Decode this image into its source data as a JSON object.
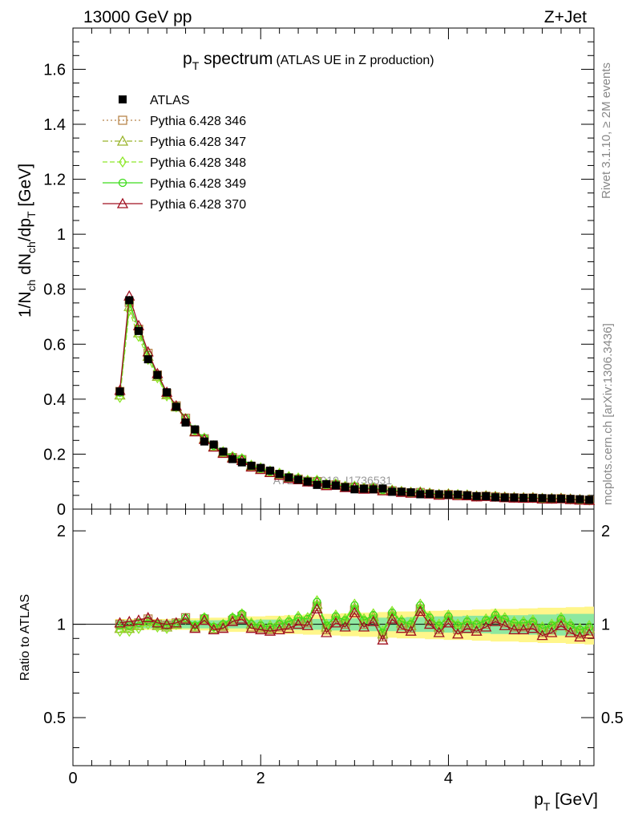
{
  "header": {
    "energy_label": "13000 GeV pp",
    "process_label": "Z+Jet"
  },
  "title": {
    "main": "p",
    "main_sub": "T",
    "main_rest": " spectrum",
    "sub": "(ATLAS UE in Z production)"
  },
  "side_labels": {
    "rivet": "Rivet 3.1.10, ≥ 2M events",
    "mcplots": "mcplots.cern.ch [arXiv:1306.3436]"
  },
  "watermark": "ATLAS_2019_I1736531",
  "axes": {
    "ylabel_top": "1/N_ch dN_ch/dp_T [GeV]",
    "ylabel_ratio": "Ratio to ATLAS",
    "xlabel_main": "p",
    "xlabel_sub": "T",
    "xlabel_rest": " [GeV]"
  },
  "colors": {
    "data": "#000000",
    "p346": "#b8854a",
    "p347": "#99b32a",
    "p348": "#8ee82a",
    "p349": "#3cdc1a",
    "p370": "#a01020",
    "band_inner": "#8ee8a0",
    "band_outer": "#fff68a"
  },
  "chart_data": {
    "type": "line",
    "x": [
      0.5,
      0.6,
      0.7,
      0.8,
      0.9,
      1.0,
      1.1,
      1.2,
      1.3,
      1.4,
      1.5,
      1.6,
      1.7,
      1.8,
      1.9,
      2.0,
      2.1,
      2.2,
      2.3,
      2.4,
      2.5,
      2.6,
      2.7,
      2.8,
      2.9,
      3.0,
      3.1,
      3.2,
      3.3,
      3.4,
      3.5,
      3.6,
      3.7,
      3.8,
      3.9,
      4.0,
      4.1,
      4.2,
      4.3,
      4.4,
      4.5,
      4.6,
      4.7,
      4.8,
      4.9,
      5.0,
      5.1,
      5.2,
      5.3,
      5.4,
      5.5
    ],
    "xlim": [
      0,
      5.55
    ],
    "ylim": [
      0,
      1.75
    ],
    "ratio_ylim": [
      0.35,
      2.35
    ],
    "xticks": [
      0,
      2,
      4
    ],
    "yticks": [
      0,
      0.2,
      0.4,
      0.6,
      0.8,
      1,
      1.2,
      1.4,
      1.6
    ],
    "ratio_yticks": [
      0.5,
      1,
      2
    ],
    "ratio_reference": 1,
    "data": {
      "name": "ATLAS",
      "values": [
        0.428,
        0.76,
        0.648,
        0.545,
        0.488,
        0.425,
        0.372,
        0.315,
        0.29,
        0.246,
        0.235,
        0.209,
        0.182,
        0.17,
        0.158,
        0.15,
        0.14,
        0.128,
        0.115,
        0.107,
        0.1,
        0.088,
        0.091,
        0.086,
        0.08,
        0.072,
        0.074,
        0.072,
        0.075,
        0.063,
        0.063,
        0.061,
        0.054,
        0.055,
        0.054,
        0.052,
        0.053,
        0.05,
        0.047,
        0.047,
        0.043,
        0.042,
        0.042,
        0.041,
        0.041,
        0.04,
        0.039,
        0.038,
        0.037,
        0.036,
        0.034
      ]
    },
    "band": {
      "inner_rel": [
        0.03,
        0.03,
        0.03,
        0.03,
        0.03,
        0.03,
        0.03,
        0.03,
        0.03,
        0.03,
        0.03,
        0.03,
        0.03,
        0.03,
        0.03,
        0.035,
        0.035,
        0.035,
        0.035,
        0.04,
        0.04,
        0.04,
        0.04,
        0.045,
        0.045,
        0.045,
        0.045,
        0.05,
        0.05,
        0.05,
        0.05,
        0.055,
        0.055,
        0.055,
        0.06,
        0.06,
        0.06,
        0.065,
        0.065,
        0.065,
        0.07,
        0.07,
        0.07,
        0.07,
        0.075,
        0.075,
        0.075,
        0.08,
        0.08,
        0.08,
        0.08
      ],
      "outer_rel": [
        0.04,
        0.04,
        0.04,
        0.04,
        0.04,
        0.04,
        0.04,
        0.04,
        0.045,
        0.045,
        0.05,
        0.05,
        0.055,
        0.055,
        0.06,
        0.06,
        0.065,
        0.065,
        0.07,
        0.07,
        0.075,
        0.075,
        0.08,
        0.08,
        0.085,
        0.085,
        0.09,
        0.09,
        0.095,
        0.095,
        0.1,
        0.1,
        0.1,
        0.105,
        0.105,
        0.11,
        0.11,
        0.11,
        0.115,
        0.115,
        0.12,
        0.12,
        0.12,
        0.125,
        0.125,
        0.13,
        0.13,
        0.13,
        0.135,
        0.135,
        0.14
      ]
    },
    "series": [
      {
        "name": "Pythia 6.428 346",
        "key": "p346",
        "marker": "square",
        "dash": "2,3",
        "ratio": [
          1.0,
          0.99,
          1.01,
          1.04,
          1.0,
          0.99,
          1.01,
          1.05,
          0.98,
          1.04,
          0.97,
          0.98,
          1.03,
          1.06,
          0.98,
          0.97,
          0.96,
          0.98,
          0.99,
          1.02,
          1.01,
          1.14,
          0.96,
          1.03,
          1.0,
          1.11,
          1.0,
          1.04,
          0.91,
          1.06,
          0.99,
          0.97,
          1.12,
          1.02,
          0.96,
          1.03,
          0.96,
          0.99,
          0.97,
          1.0,
          1.04,
          1.01,
          0.98,
          0.98,
          0.99,
          0.94,
          0.96,
          1.01,
          0.96,
          0.93,
          0.95
        ]
      },
      {
        "name": "Pythia 6.428 347",
        "key": "p347",
        "marker": "triangle",
        "dash": "7,3,2,3",
        "ratio": [
          0.97,
          0.97,
          0.99,
          1.02,
          0.99,
          0.98,
          1.0,
          1.04,
          0.98,
          1.04,
          0.97,
          0.99,
          1.04,
          1.07,
          1.0,
          0.98,
          0.97,
          1.0,
          1.01,
          1.04,
          1.03,
          1.16,
          0.98,
          1.05,
          1.02,
          1.13,
          1.02,
          1.06,
          0.93,
          1.08,
          1.01,
          0.99,
          1.13,
          1.04,
          0.98,
          1.05,
          0.98,
          1.01,
          0.99,
          1.02,
          1.06,
          1.03,
          1.0,
          1.0,
          1.01,
          0.96,
          0.98,
          1.03,
          0.98,
          0.95,
          0.97
        ]
      },
      {
        "name": "Pythia 6.428 348",
        "key": "p348",
        "marker": "diamond",
        "dash": "6,3",
        "ratio": [
          0.95,
          0.95,
          0.97,
          1.0,
          0.98,
          0.97,
          1.0,
          1.04,
          0.99,
          1.05,
          0.98,
          1.0,
          1.05,
          1.08,
          1.01,
          1.0,
          0.99,
          1.02,
          1.03,
          1.06,
          1.05,
          1.19,
          1.0,
          1.07,
          1.04,
          1.16,
          1.04,
          1.08,
          0.95,
          1.1,
          1.03,
          1.01,
          1.16,
          1.06,
          1.0,
          1.07,
          1.0,
          1.03,
          1.01,
          1.04,
          1.08,
          1.05,
          1.02,
          1.02,
          1.03,
          0.98,
          1.0,
          1.05,
          1.0,
          0.97,
          0.99
        ]
      },
      {
        "name": "Pythia 6.428 349",
        "key": "p349",
        "marker": "circle",
        "dash": "",
        "ratio": [
          0.99,
          0.99,
          1.01,
          1.03,
          1.0,
          0.99,
          1.01,
          1.05,
          0.99,
          1.05,
          0.98,
          1.0,
          1.05,
          1.08,
          1.0,
          0.99,
          0.98,
          1.0,
          1.02,
          1.05,
          1.04,
          1.18,
          0.99,
          1.06,
          1.03,
          1.15,
          1.03,
          1.07,
          0.94,
          1.09,
          1.02,
          1.0,
          1.15,
          1.05,
          0.99,
          1.06,
          0.99,
          1.02,
          1.0,
          1.03,
          1.07,
          1.04,
          1.01,
          1.01,
          1.02,
          0.97,
          0.99,
          1.04,
          0.99,
          0.96,
          0.98
        ]
      },
      {
        "name": "Pythia 6.428 370",
        "key": "p370",
        "marker": "triangle",
        "dash": "",
        "ratio": [
          1.01,
          1.02,
          1.03,
          1.05,
          1.01,
          1.0,
          1.01,
          1.04,
          0.97,
          1.03,
          0.96,
          0.97,
          1.02,
          1.04,
          0.97,
          0.96,
          0.95,
          0.96,
          0.97,
          1.0,
          0.99,
          1.12,
          0.94,
          1.01,
          0.98,
          1.09,
          0.98,
          1.02,
          0.89,
          1.04,
          0.97,
          0.95,
          1.1,
          1.0,
          0.94,
          1.01,
          0.93,
          0.97,
          0.95,
          0.98,
          1.02,
          0.99,
          0.96,
          0.96,
          0.97,
          0.92,
          0.94,
          0.99,
          0.94,
          0.91,
          0.93
        ]
      }
    ]
  }
}
